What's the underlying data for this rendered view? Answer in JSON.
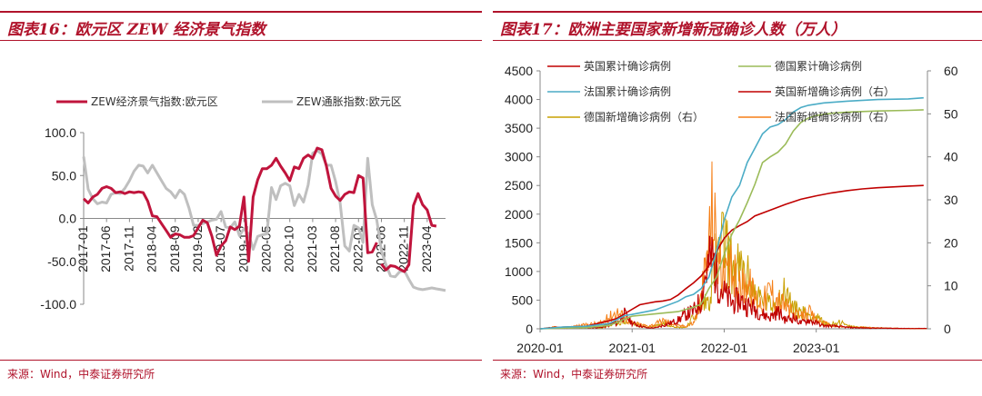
{
  "charts": [
    {
      "title": "图表16：欧元区 ZEW 经济景气指数",
      "source": "来源：Wind，中泰证券研究所"
    },
    {
      "title": "图表17：欧洲主要国家新增新冠确诊人数（万人）",
      "source": "来源：Wind，中泰证券研究所"
    }
  ],
  "colors": {
    "accent": "#b0132b",
    "zew": "#c0143c",
    "zew_inflation": "#bfbfbf",
    "uk_new": "#c00000",
    "de_total": "#9bbb59",
    "fr_total": "#4bacc6",
    "de_new": "#c9a000",
    "fr_new": "#f57f17"
  },
  "chart_data": [
    {
      "type": "line",
      "title": "",
      "y_ticks": [
        "100.0",
        "50.0",
        "0.0",
        "-50.0",
        "-100.0"
      ],
      "ylim": [
        -100,
        100
      ],
      "x_ticks": [
        "2017-01",
        "2017-06",
        "2017-11",
        "2018-04",
        "2018-09",
        "2019-02",
        "2019-07",
        "2019-12",
        "2020-05",
        "2020-10",
        "2021-03",
        "2021-08",
        "2022-01",
        "2022-06",
        "2022-11",
        "2023-04"
      ],
      "x_start": "2017-01",
      "legend_placement": "top",
      "series": [
        {
          "name": "ZEW经济景气指数:欧元区",
          "values": [
            23,
            18,
            25,
            28,
            35,
            37,
            35,
            30,
            31,
            29,
            31,
            30,
            31,
            30,
            20,
            3,
            2,
            -6,
            -14,
            -22,
            -18,
            -19,
            -22,
            -22,
            -20,
            -11,
            -2,
            -5,
            -21,
            -43,
            -32,
            -26,
            -10,
            -13,
            -9,
            25,
            -50,
            25,
            45,
            58,
            58,
            62,
            70,
            61,
            53,
            44,
            60,
            58,
            70,
            74,
            70,
            82,
            80,
            61,
            35,
            26,
            21,
            28,
            31,
            30,
            50,
            47,
            -40,
            -39,
            -28,
            -53,
            -60,
            -55,
            -56,
            -59,
            -62,
            -54,
            15,
            29,
            16,
            10,
            -8,
            -9
          ],
          "gaps": [
            65
          ]
        },
        {
          "name": "ZEW通胀指数:欧元区",
          "values": [
            72,
            34,
            23,
            17,
            19,
            18,
            28,
            30,
            29,
            35,
            44,
            55,
            62,
            61,
            53,
            62,
            53,
            44,
            35,
            31,
            24,
            33,
            28,
            12,
            -8,
            -8,
            -6,
            -4,
            -2,
            -1,
            8,
            -10,
            -11,
            -4,
            -20,
            -12,
            -18,
            -36,
            -21,
            -19,
            -18,
            36,
            22,
            38,
            41,
            38,
            15,
            28,
            19,
            39,
            76,
            79,
            75,
            62,
            62,
            43,
            18,
            -32,
            -38,
            -8,
            -11,
            -28,
            70,
            16,
            -2,
            -38,
            -54,
            -67,
            -68,
            -62,
            -61,
            -71,
            -80,
            -82,
            -83,
            -82,
            -81,
            -82,
            -83,
            -84
          ]
        }
      ]
    },
    {
      "type": "line",
      "title": "",
      "x_ticks": [
        "2020-01",
        "2021-01",
        "2022-01",
        "2023-01"
      ],
      "y_ticks_left": [
        "4500",
        "4000",
        "3500",
        "3000",
        "2500",
        "2000",
        "1500",
        "1000",
        "500",
        "0"
      ],
      "y_ticks_right": [
        "60",
        "50",
        "40",
        "30",
        "20",
        "10",
        "0"
      ],
      "ylim_left": [
        0,
        4500
      ],
      "ylim_right": [
        0,
        60
      ],
      "legend_placement": "top-left",
      "series": [
        {
          "name": "英国累计确诊病例",
          "axis": "left",
          "kind": "cumulative",
          "points": [
            [
              0,
              0
            ],
            [
              1.5,
              15
            ],
            [
              3,
              28
            ],
            [
              6,
              45
            ],
            [
              9,
              140
            ],
            [
              10,
              180
            ],
            [
              11,
              260
            ],
            [
              12,
              340
            ],
            [
              13,
              420
            ],
            [
              14,
              445
            ],
            [
              15,
              470
            ],
            [
              16,
              485
            ],
            [
              17,
              510
            ],
            [
              18,
              590
            ],
            [
              19,
              700
            ],
            [
              20,
              800
            ],
            [
              21,
              920
            ],
            [
              22,
              1100
            ],
            [
              23,
              1350
            ],
            [
              24,
              1580
            ],
            [
              25,
              1720
            ],
            [
              26,
              1800
            ],
            [
              27,
              1870
            ],
            [
              28,
              1970
            ],
            [
              30,
              2070
            ],
            [
              32,
              2170
            ],
            [
              34,
              2260
            ],
            [
              36,
              2320
            ],
            [
              38,
              2370
            ],
            [
              40,
              2410
            ],
            [
              42,
              2440
            ],
            [
              44,
              2460
            ],
            [
              46,
              2475
            ],
            [
              48,
              2490
            ],
            [
              50,
              2500
            ]
          ]
        },
        {
          "name": "德国累计确诊病例",
          "axis": "left",
          "kind": "cumulative",
          "points": [
            [
              0,
              0
            ],
            [
              3,
              12
            ],
            [
              6,
              20
            ],
            [
              9,
              60
            ],
            [
              10,
              110
            ],
            [
              11,
              170
            ],
            [
              12,
              220
            ],
            [
              15,
              260
            ],
            [
              18,
              300
            ],
            [
              20,
              375
            ],
            [
              21,
              430
            ],
            [
              22,
              700
            ],
            [
              23,
              900
            ],
            [
              24,
              1300
            ],
            [
              25,
              1650
            ],
            [
              26,
              1900
            ],
            [
              27,
              2200
            ],
            [
              28,
              2520
            ],
            [
              29,
              2900
            ],
            [
              30,
              3000
            ],
            [
              31,
              3080
            ],
            [
              32,
              3220
            ],
            [
              33,
              3450
            ],
            [
              34,
              3600
            ],
            [
              35,
              3680
            ],
            [
              36,
              3720
            ],
            [
              38,
              3760
            ],
            [
              40,
              3780
            ],
            [
              44,
              3800
            ],
            [
              48,
              3810
            ],
            [
              50,
              3820
            ]
          ]
        },
        {
          "name": "法国累计确诊病例",
          "axis": "left",
          "kind": "cumulative",
          "points": [
            [
              0,
              0
            ],
            [
              3,
              30
            ],
            [
              6,
              45
            ],
            [
              9,
              90
            ],
            [
              10,
              160
            ],
            [
              11,
              230
            ],
            [
              12,
              250
            ],
            [
              15,
              330
            ],
            [
              18,
              480
            ],
            [
              19,
              560
            ],
            [
              20,
              600
            ],
            [
              21,
              700
            ],
            [
              22,
              900
            ],
            [
              23,
              1350
            ],
            [
              24,
              1900
            ],
            [
              25,
              2300
            ],
            [
              26,
              2500
            ],
            [
              27,
              2900
            ],
            [
              28,
              3150
            ],
            [
              29,
              3400
            ],
            [
              30,
              3520
            ],
            [
              31,
              3560
            ],
            [
              32,
              3650
            ],
            [
              33,
              3780
            ],
            [
              34,
              3860
            ],
            [
              35,
              3900
            ],
            [
              37,
              3940
            ],
            [
              40,
              3970
            ],
            [
              44,
              4000
            ],
            [
              48,
              4010
            ],
            [
              50,
              4030
            ]
          ]
        },
        {
          "name": "英国新增确诊病例（右）",
          "axis": "right",
          "kind": "daily",
          "points": [
            [
              0,
              0
            ],
            [
              2,
              0.5
            ],
            [
              3,
              0.3
            ],
            [
              8,
              0.5
            ],
            [
              9,
              1.5
            ],
            [
              10,
              2
            ],
            [
              11,
              5
            ],
            [
              12,
              2
            ],
            [
              13,
              1
            ],
            [
              14,
              0.3
            ],
            [
              15,
              0.3
            ],
            [
              17,
              2
            ],
            [
              18,
              3
            ],
            [
              19,
              5
            ],
            [
              20,
              6
            ],
            [
              21,
              10
            ],
            [
              21.5,
              18
            ],
            [
              22,
              22
            ],
            [
              22.5,
              25
            ],
            [
              23,
              18
            ],
            [
              24,
              12
            ],
            [
              25,
              9
            ],
            [
              26,
              10
            ],
            [
              27,
              8
            ],
            [
              28,
              7
            ],
            [
              29,
              5
            ],
            [
              30,
              4
            ],
            [
              31,
              6
            ],
            [
              32,
              3
            ],
            [
              33,
              4
            ],
            [
              34,
              2
            ],
            [
              35,
              3
            ],
            [
              36,
              2
            ],
            [
              37,
              1
            ],
            [
              38,
              1
            ],
            [
              40,
              0.5
            ],
            [
              42,
              0.3
            ],
            [
              45,
              0.2
            ],
            [
              48,
              0.1
            ],
            [
              50,
              0.1
            ]
          ]
        },
        {
          "name": "德国新增确诊病例（右）",
          "axis": "right",
          "kind": "daily",
          "points": [
            [
              0,
              0
            ],
            [
              2,
              0.4
            ],
            [
              3,
              0.3
            ],
            [
              8,
              0.3
            ],
            [
              9,
              1
            ],
            [
              10,
              2
            ],
            [
              11,
              2.5
            ],
            [
              12,
              2
            ],
            [
              13,
              1
            ],
            [
              14,
              0.5
            ],
            [
              15,
              1
            ],
            [
              16,
              2
            ],
            [
              18,
              0.5
            ],
            [
              19,
              0.5
            ],
            [
              20,
              4
            ],
            [
              21,
              8
            ],
            [
              22,
              10
            ],
            [
              22.5,
              18
            ],
            [
              23,
              25
            ],
            [
              24,
              30
            ],
            [
              25,
              22
            ],
            [
              26,
              20
            ],
            [
              27,
              18
            ],
            [
              28,
              12
            ],
            [
              29,
              10
            ],
            [
              30,
              8
            ],
            [
              31,
              10
            ],
            [
              32,
              13
            ],
            [
              33,
              7
            ],
            [
              34,
              6
            ],
            [
              35,
              5
            ],
            [
              36,
              4
            ],
            [
              37,
              2
            ],
            [
              38,
              1.5
            ],
            [
              39,
              2.5
            ],
            [
              40,
              1
            ],
            [
              42,
              0.5
            ],
            [
              44,
              0.3
            ],
            [
              48,
              0.1
            ],
            [
              50,
              0.1
            ]
          ]
        },
        {
          "name": "法国新增确诊病例（右）",
          "axis": "right",
          "kind": "daily",
          "points": [
            [
              0,
              0
            ],
            [
              2,
              0.6
            ],
            [
              3,
              0.4
            ],
            [
              8,
              2
            ],
            [
              9,
              4
            ],
            [
              10,
              6
            ],
            [
              11,
              4
            ],
            [
              12,
              2
            ],
            [
              13,
              1.5
            ],
            [
              14,
              1
            ],
            [
              15,
              1.5
            ],
            [
              16,
              3
            ],
            [
              17,
              2
            ],
            [
              18,
              1
            ],
            [
              19,
              1
            ],
            [
              20,
              2
            ],
            [
              21,
              10
            ],
            [
              22,
              30
            ],
            [
              22.5,
              44
            ],
            [
              23,
              28
            ],
            [
              24,
              16
            ],
            [
              25,
              20
            ],
            [
              26,
              14
            ],
            [
              27,
              17
            ],
            [
              28,
              11
            ],
            [
              29,
              9
            ],
            [
              30,
              14
            ],
            [
              31,
              10
            ],
            [
              32,
              8
            ],
            [
              33,
              5
            ],
            [
              34,
              4
            ],
            [
              35,
              6
            ],
            [
              36,
              3
            ],
            [
              37,
              2
            ],
            [
              38,
              1
            ],
            [
              40,
              0.5
            ],
            [
              42,
              0.5
            ],
            [
              44,
              0.3
            ],
            [
              48,
              0.1
            ],
            [
              50,
              0.1
            ]
          ]
        }
      ]
    }
  ]
}
